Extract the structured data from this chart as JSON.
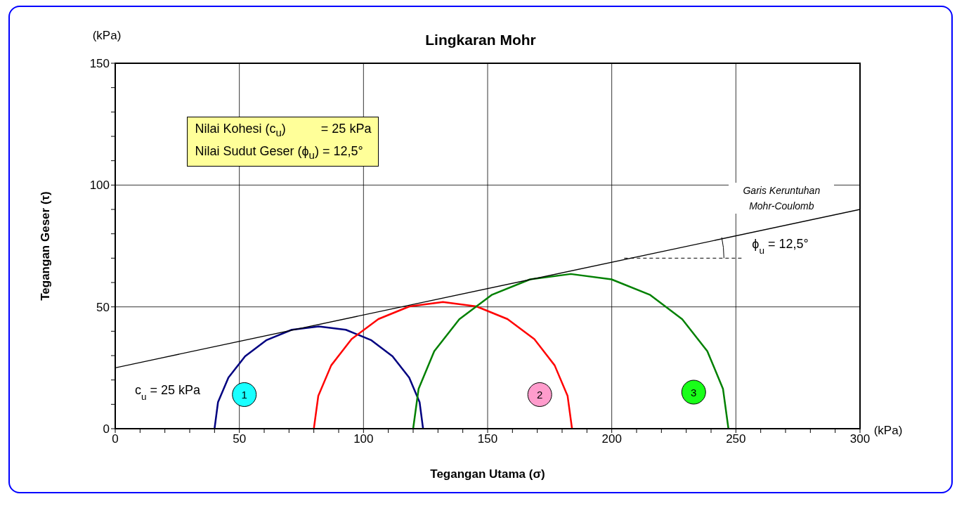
{
  "chart_data": {
    "type": "line",
    "title": "Lingkaran Mohr",
    "xlabel": "Tegangan Utama (σ)",
    "ylabel": "Tegangan Geser (τ)",
    "xlim": [
      0,
      300
    ],
    "ylim": [
      0,
      150
    ],
    "xticks": [
      0,
      {
        "value": 10,
        "label": null
      },
      {
        "value": 20,
        "label": null
      },
      {
        "value": 30,
        "label": null
      },
      {
        "value": 40,
        "label": null
      },
      50,
      {
        "value": 60,
        "label": null
      },
      {
        "value": 70,
        "label": null
      },
      {
        "value": 80,
        "label": null
      },
      {
        "value": 90,
        "label": null
      },
      100,
      {
        "value": 110,
        "label": null
      },
      {
        "value": 120,
        "label": null
      },
      {
        "value": 130,
        "label": null
      },
      {
        "value": 140,
        "label": null
      },
      150,
      {
        "value": 160,
        "label": null
      },
      {
        "value": 170,
        "label": null
      },
      {
        "value": 180,
        "label": null
      },
      {
        "value": 190,
        "label": null
      },
      200,
      {
        "value": 210,
        "label": null
      },
      {
        "value": 220,
        "label": null
      },
      {
        "value": 230,
        "label": null
      },
      {
        "value": 240,
        "label": null
      },
      250,
      {
        "value": 260,
        "label": null
      },
      {
        "value": 270,
        "label": null
      },
      {
        "value": 280,
        "label": null
      },
      {
        "value": 290,
        "label": null
      },
      300
    ],
    "yticks": [
      0,
      {
        "value": 10,
        "label": null
      },
      {
        "value": 20,
        "label": null
      },
      {
        "value": 30,
        "label": null
      },
      {
        "value": 40,
        "label": null
      },
      50,
      {
        "value": 60,
        "label": null
      },
      {
        "value": 70,
        "label": null
      },
      {
        "value": 80,
        "label": null
      },
      {
        "value": 90,
        "label": null
      },
      100,
      {
        "value": 110,
        "label": null
      },
      {
        "value": 120,
        "label": null
      },
      {
        "value": 130,
        "label": null
      },
      {
        "value": 140,
        "label": null
      },
      150
    ],
    "grid": true,
    "legend": false,
    "marker": "none",
    "line_style": "solid",
    "series": [
      {
        "color": "#000080",
        "x": [
          40,
          41.4,
          45.6,
          52.3,
          61,
          71.1,
          82,
          92.9,
          103,
          111.7,
          118.4,
          122.6,
          124
        ],
        "values": [
          0,
          10.9,
          21,
          29.7,
          36.4,
          40.6,
          42,
          40.6,
          36.4,
          29.7,
          21,
          10.9,
          0
        ]
      },
      {
        "color": "#ff0000",
        "x": [
          80,
          81.8,
          87,
          95.2,
          106,
          118.5,
          132,
          145.5,
          158,
          168.8,
          177,
          182.2,
          184
        ],
        "values": [
          0,
          13.5,
          26,
          36.8,
          45,
          50.2,
          52,
          50.2,
          45,
          36.8,
          26,
          13.5,
          0
        ]
      },
      {
        "color": "#008000",
        "x": [
          120,
          122.2,
          128.5,
          138.6,
          151.8,
          167.1,
          183.5,
          199.9,
          215.3,
          228.4,
          238.5,
          244.8,
          247
        ],
        "values": [
          0,
          16.4,
          31.8,
          44.9,
          55,
          61.3,
          63.5,
          61.3,
          55,
          44.9,
          31.8,
          16.4,
          0
        ]
      },
      {
        "color": "#000000",
        "x": [
          0,
          300
        ],
        "values": [
          25,
          90
        ]
      }
    ],
    "annotations": [
      "(kPa)",
      "(kPa)",
      "Nilai Kohesi (c$_{u}$)          = 25 kPa",
      "Nilai Sudut Geser (ϕ$_{u}$) = 12,5°",
      "c$_{u}$ = 25 kPa",
      "Garis Keruntuhan Mohr-Coulomb",
      {
        "text": "ϕ$_{u}$ = 12,5°",
        "x": 205,
        "y": 70
      },
      {
        "text": "1",
        "x": 52,
        "y": 14
      },
      {
        "text": "2",
        "x": 171,
        "y": 14
      },
      {
        "text": "3",
        "x": 233,
        "y": 15
      }
    ]
  }
}
